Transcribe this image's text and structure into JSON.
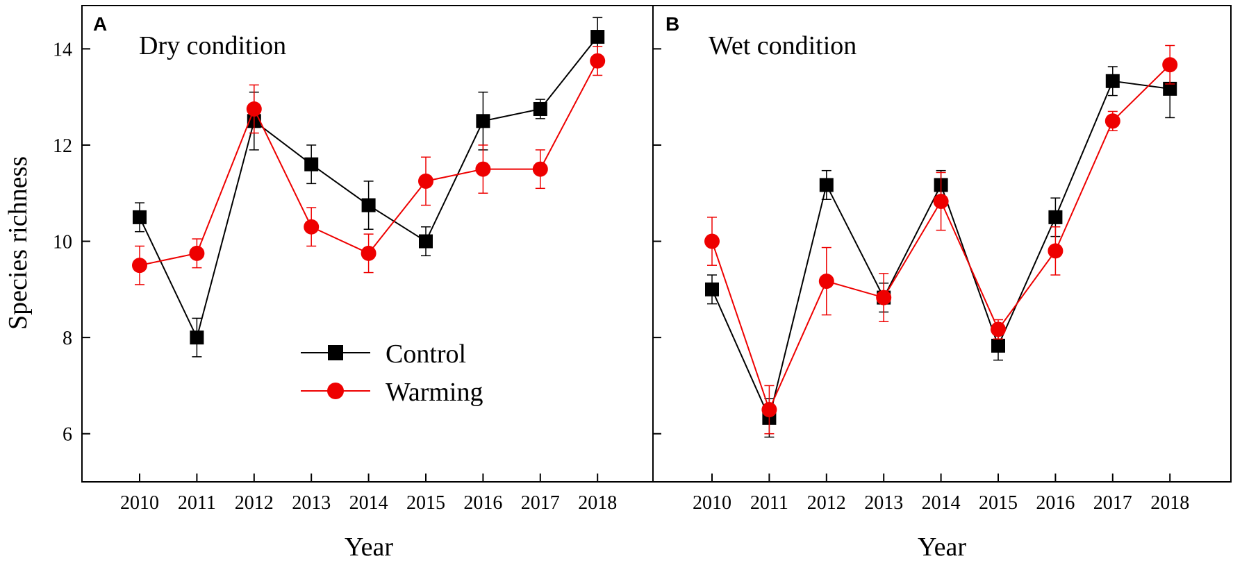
{
  "chart_data": {
    "type": "line",
    "shared": {
      "categories": [
        "2010",
        "2011",
        "2012",
        "2013",
        "2014",
        "2015",
        "2016",
        "2017",
        "2018"
      ],
      "xlabel": "Year",
      "ylabel": "Species richness",
      "ylim": [
        5,
        14.9
      ],
      "yticks": [
        6,
        8,
        10,
        12,
        14
      ],
      "ytick_labels": [
        "6",
        "8",
        "10",
        "12",
        "14"
      ],
      "legend": {
        "position": "lower-middle of panel A",
        "entries": [
          {
            "name": "Control",
            "marker": "square",
            "color": "#000000"
          },
          {
            "name": "Warming",
            "marker": "circle",
            "color": "#ee0000"
          }
        ]
      }
    },
    "panels": [
      {
        "letter": "A",
        "title": "Dry condition",
        "series": [
          {
            "name": "Control",
            "color": "#000000",
            "marker": "square",
            "values": [
              10.5,
              8.0,
              12.5,
              11.6,
              10.75,
              10.0,
              12.5,
              12.75,
              14.25
            ],
            "errors": [
              0.3,
              0.4,
              0.6,
              0.4,
              0.5,
              0.3,
              0.6,
              0.2,
              0.4
            ]
          },
          {
            "name": "Warming",
            "color": "#ee0000",
            "marker": "circle",
            "values": [
              9.5,
              9.75,
              12.75,
              10.3,
              9.75,
              11.25,
              11.5,
              11.5,
              13.75
            ],
            "errors": [
              0.4,
              0.3,
              0.5,
              0.4,
              0.4,
              0.5,
              0.5,
              0.4,
              0.3
            ]
          }
        ]
      },
      {
        "letter": "B",
        "title": "Wet condition",
        "series": [
          {
            "name": "Control",
            "color": "#000000",
            "marker": "square",
            "values": [
              9.0,
              6.33,
              11.17,
              8.83,
              11.17,
              7.83,
              10.5,
              13.33,
              13.17
            ],
            "errors": [
              0.3,
              0.4,
              0.3,
              0.3,
              0.3,
              0.3,
              0.4,
              0.3,
              0.6
            ]
          },
          {
            "name": "Warming",
            "color": "#ee0000",
            "marker": "circle",
            "values": [
              10.0,
              6.5,
              9.17,
              8.83,
              10.83,
              8.17,
              9.8,
              12.5,
              13.67
            ],
            "errors": [
              0.5,
              0.5,
              0.7,
              0.5,
              0.6,
              0.2,
              0.5,
              0.2,
              0.4
            ]
          }
        ]
      }
    ]
  }
}
